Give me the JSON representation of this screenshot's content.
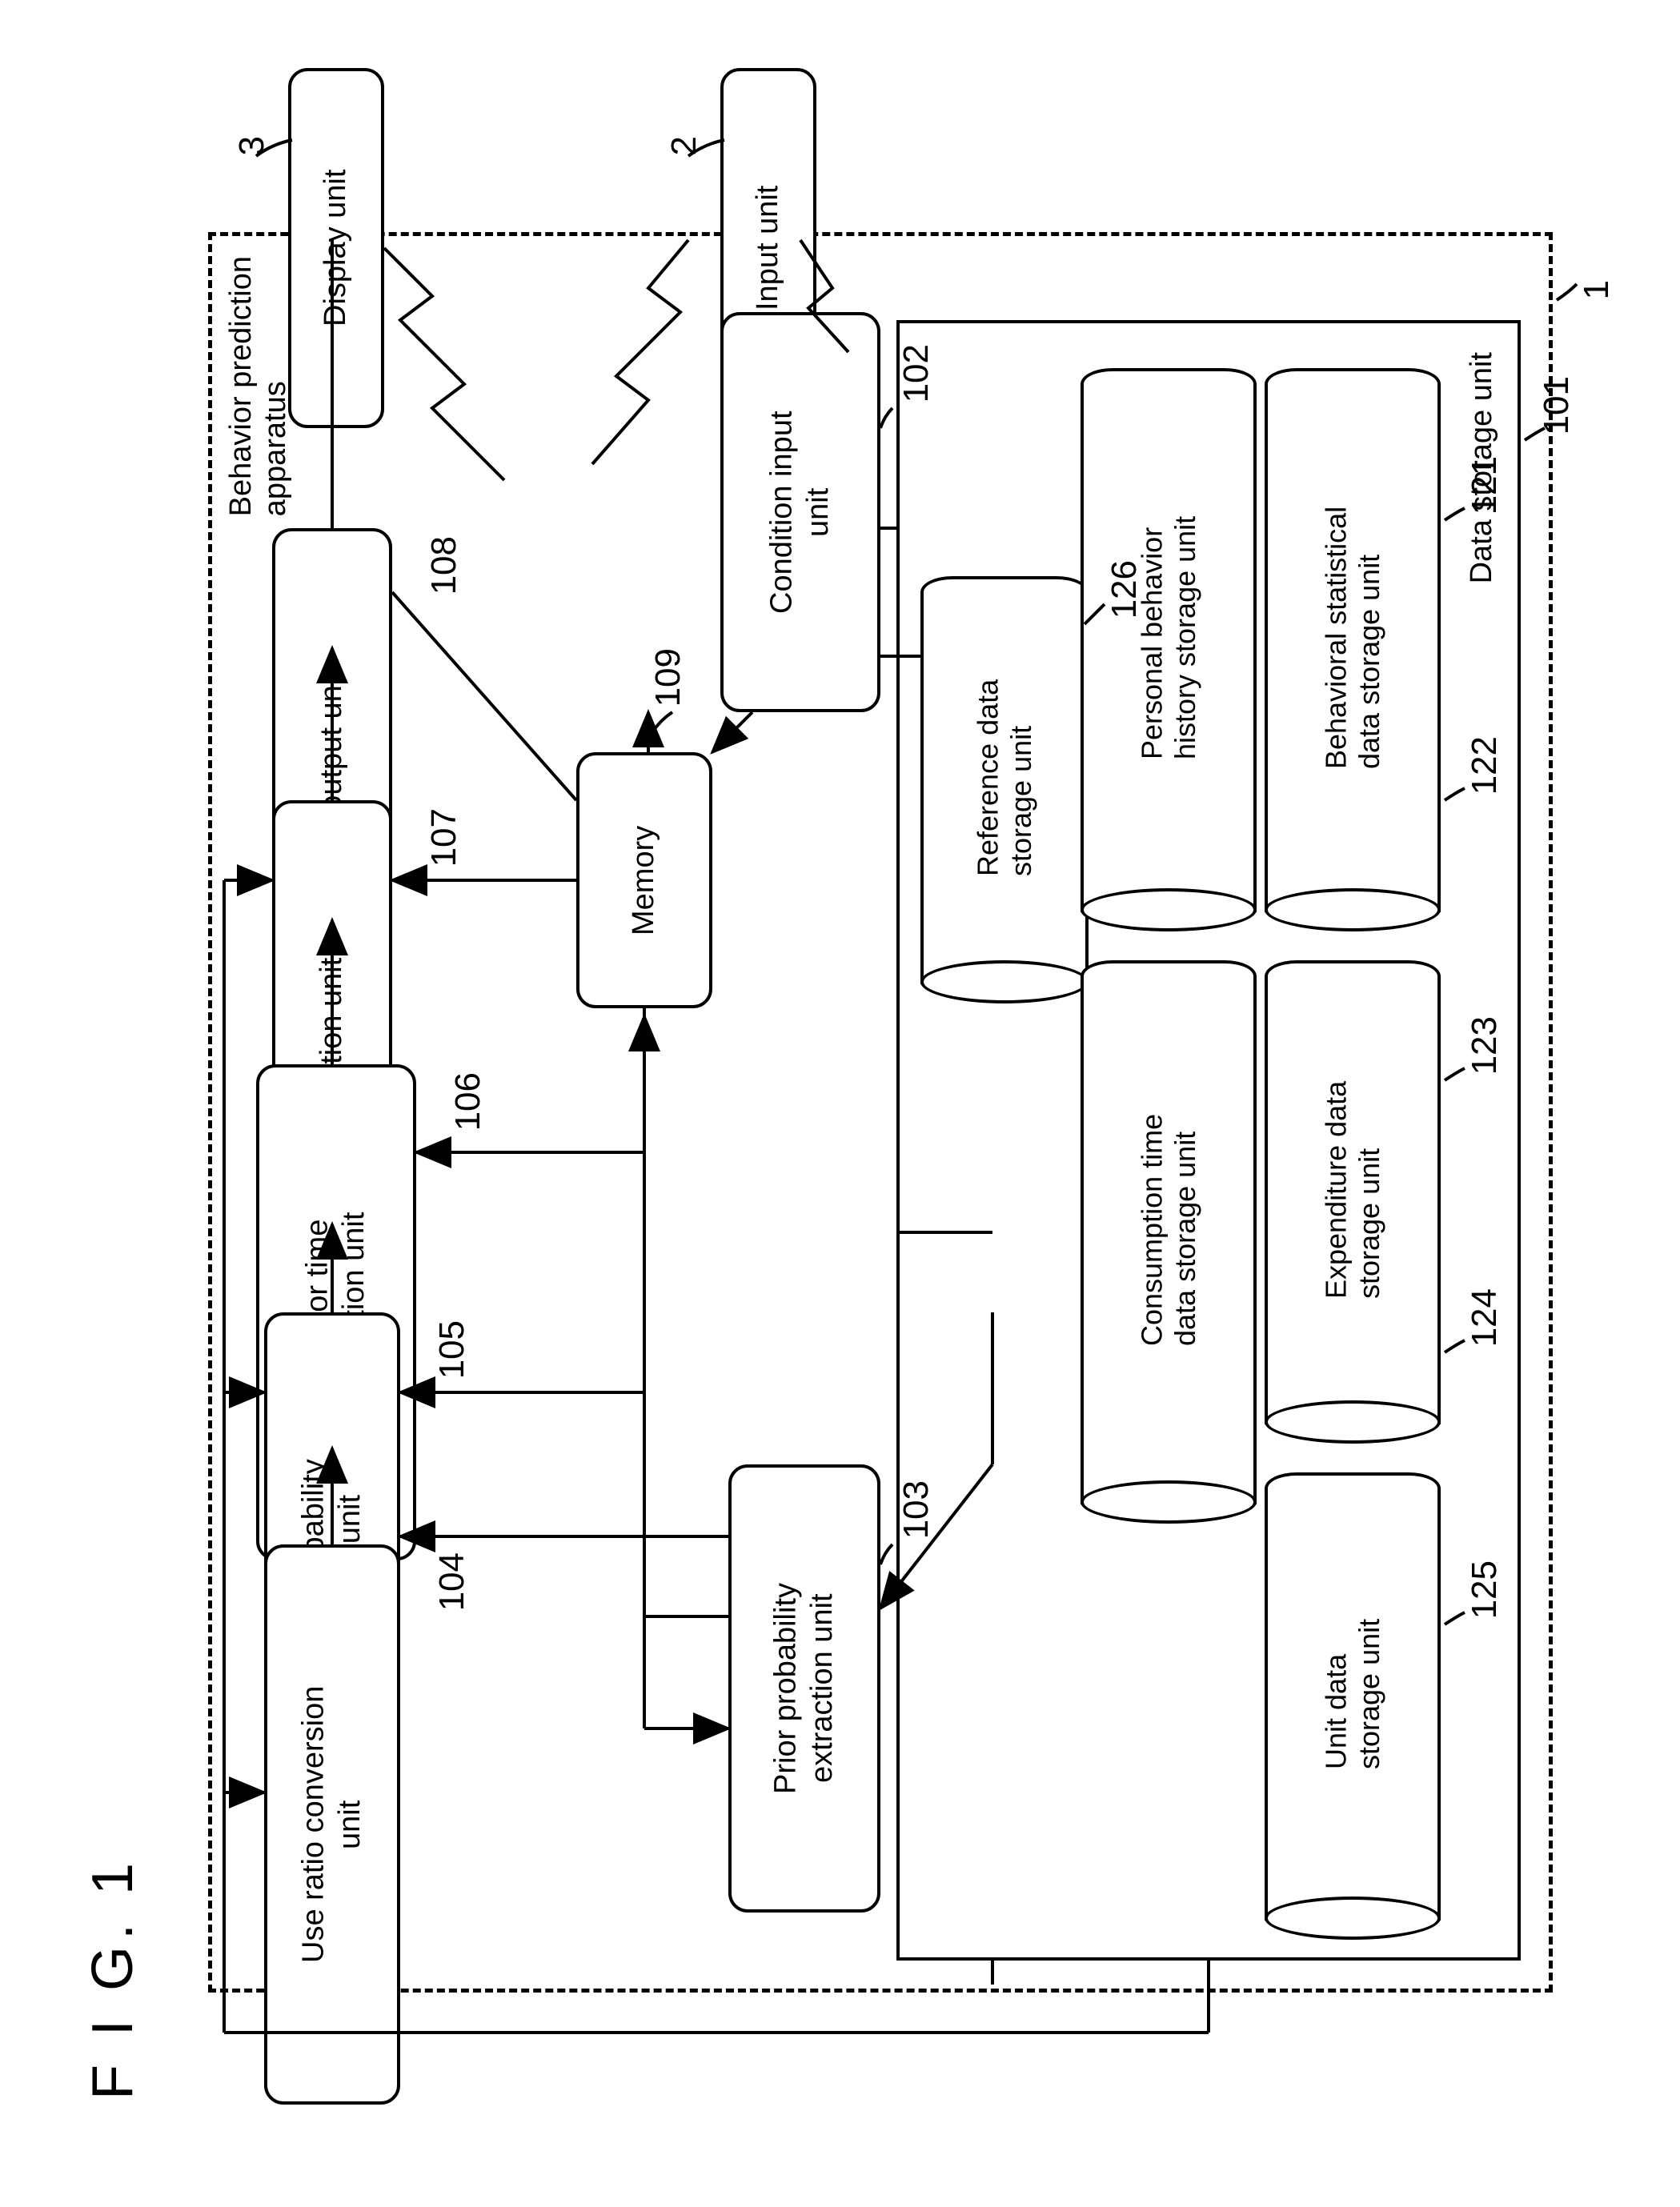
{
  "figure_label": "F I G. 1",
  "external": {
    "display_unit": {
      "label": "Display unit",
      "ref": "3"
    },
    "input_unit": {
      "label": "Input unit",
      "ref": "2"
    }
  },
  "apparatus": {
    "title": "Behavior prediction\napparatus",
    "ref": "1",
    "blocks": {
      "condition_input": {
        "label": "Condition input\nunit",
        "ref": "102"
      },
      "memory": {
        "label": "Memory",
        "ref": "109"
      },
      "result_output": {
        "label": "Result output unit",
        "ref": "108"
      },
      "value_calc": {
        "label": "Value calculation unit",
        "ref": "107"
      },
      "behavior_time": {
        "label": "Behavior time\ncalculation unit",
        "ref": "106"
      },
      "behavior_prob": {
        "label": "Behavior probability\nestimation unit",
        "ref": "105"
      },
      "use_ratio": {
        "label": "Use ratio conversion\nunit",
        "ref": "104"
      },
      "prior_prob": {
        "label": "Prior probability\nextraction unit",
        "ref": "103"
      }
    },
    "storage": {
      "title": "Data storage unit",
      "ref": "101",
      "reference_data": {
        "label": "Reference data\nstorage unit",
        "ref": "126"
      },
      "items": [
        {
          "label": "Behavioral statistical\ndata storage unit",
          "ref": "121"
        },
        {
          "label": "Personal behavior\nhistory storage unit",
          "ref": "122"
        },
        {
          "label": "Expenditure data\nstorage unit",
          "ref": "123"
        },
        {
          "label": "Consumption time\ndata storage unit",
          "ref": "124"
        },
        {
          "label": "Unit data\nstorage unit",
          "ref": "125"
        }
      ]
    }
  },
  "style": {
    "stroke": "#000000",
    "stroke_width": 4,
    "arrow_size": 18,
    "bg": "#ffffff",
    "font_size_box": 38,
    "font_size_ref": 44,
    "font_size_fig": 72
  },
  "layout_note": "All coordinates in px relative to 2019x2678 canvas; diagram is rotated (text vertical-rl)."
}
